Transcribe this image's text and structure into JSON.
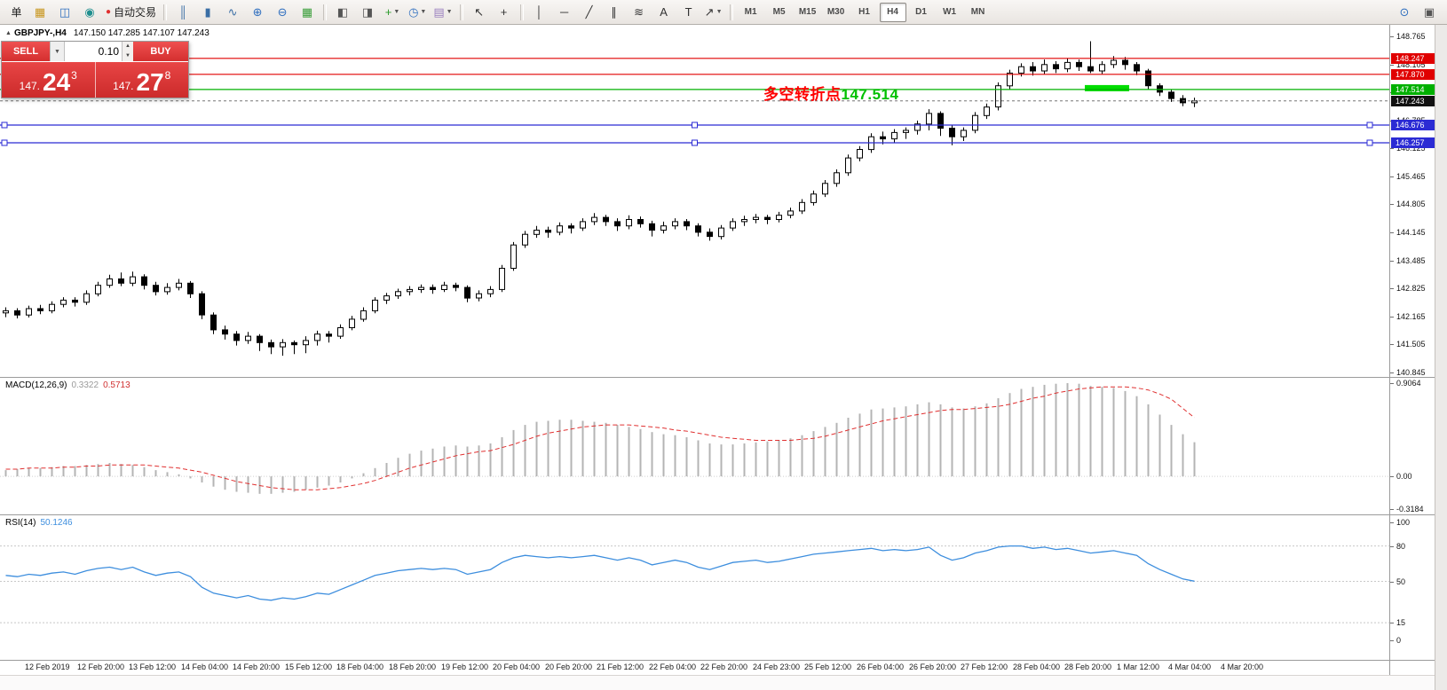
{
  "toolbar": {
    "items": [
      {
        "type": "button",
        "name": "new-order-button",
        "label": "单"
      },
      {
        "type": "icon",
        "name": "new-chart-button",
        "icon": "new-chart-icon",
        "glyph": "▦",
        "color": "#c8961e"
      },
      {
        "type": "icon",
        "name": "profiles-button",
        "icon": "profiles-icon",
        "glyph": "◫",
        "color": "#2f6fbf"
      },
      {
        "type": "icon",
        "name": "market-watch-button",
        "icon": "market-watch-icon",
        "glyph": "◉",
        "color": "#1f8f8f"
      },
      {
        "type": "autotrade",
        "name": "autotrade-button",
        "label": "自动交易",
        "dot_color": "#e03030"
      },
      {
        "type": "sep"
      },
      {
        "type": "icon",
        "name": "chart-bars-button",
        "icon": "bar-chart-icon",
        "glyph": "║",
        "color": "#3a6ea5"
      },
      {
        "type": "icon",
        "name": "chart-candles-button",
        "icon": "candlestick-icon",
        "glyph": "▮",
        "color": "#3a6ea5"
      },
      {
        "type": "icon",
        "name": "chart-line-button",
        "icon": "line-chart-icon",
        "glyph": "∿",
        "color": "#3a6ea5"
      },
      {
        "type": "icon",
        "name": "zoom-in-button",
        "icon": "zoom-in-icon",
        "glyph": "⊕",
        "color": "#2f6fbf"
      },
      {
        "type": "icon",
        "name": "zoom-out-button",
        "icon": "zoom-out-icon",
        "glyph": "⊖",
        "color": "#2f6fbf"
      },
      {
        "type": "icon",
        "name": "grid-button",
        "icon": "grid-icon",
        "glyph": "▦",
        "color": "#3a9e3a"
      },
      {
        "type": "sep"
      },
      {
        "type": "icon",
        "name": "tile-windows-button",
        "icon": "tile-windows-icon",
        "glyph": "◧",
        "color": "#555555"
      },
      {
        "type": "icon",
        "name": "cascade-windows-button",
        "icon": "cascade-windows-icon",
        "glyph": "◨",
        "color": "#555555"
      },
      {
        "type": "icon",
        "name": "indicators-button",
        "icon": "indicators-icon",
        "glyph": "+",
        "color": "#2a9a2a",
        "dropdown": true
      },
      {
        "type": "icon",
        "name": "periods-button",
        "icon": "clock-icon",
        "glyph": "◷",
        "color": "#2f6fbf",
        "dropdown": true
      },
      {
        "type": "icon",
        "name": "templates-button",
        "icon": "templates-icon",
        "glyph": "▤",
        "color": "#9a7fbf",
        "dropdown": true
      },
      {
        "type": "sep"
      },
      {
        "type": "icon",
        "name": "cursor-button",
        "icon": "cursor-icon",
        "glyph": "↖",
        "color": "#333333"
      },
      {
        "type": "icon",
        "name": "crosshair-button",
        "icon": "crosshair-icon",
        "glyph": "+",
        "color": "#333333"
      },
      {
        "type": "sep"
      },
      {
        "type": "icon",
        "name": "vertical-line-button",
        "icon": "vertical-line-icon",
        "glyph": "│",
        "color": "#333333"
      },
      {
        "type": "icon",
        "name": "horizontal-line-button",
        "icon": "horizontal-line-icon",
        "glyph": "─",
        "color": "#333333"
      },
      {
        "type": "icon",
        "name": "trendline-button",
        "icon": "trendline-icon",
        "glyph": "╱",
        "color": "#333333"
      },
      {
        "type": "icon",
        "name": "equidistant-channel-button",
        "icon": "channel-icon",
        "glyph": "∥",
        "color": "#333333"
      },
      {
        "type": "icon",
        "name": "fibonacci-button",
        "icon": "fibonacci-icon",
        "glyph": "≋",
        "color": "#333333"
      },
      {
        "type": "icon",
        "name": "text-button",
        "icon": "text-icon",
        "glyph": "A",
        "color": "#333333"
      },
      {
        "type": "icon",
        "name": "text-label-button",
        "icon": "text-label-icon",
        "glyph": "T",
        "color": "#333333"
      },
      {
        "type": "icon",
        "name": "arrows-button",
        "icon": "arrows-icon",
        "glyph": "↗",
        "color": "#333333",
        "dropdown": true
      },
      {
        "type": "sep"
      },
      {
        "type": "timeframes"
      },
      {
        "type": "spacer"
      },
      {
        "type": "icon",
        "name": "search-button",
        "icon": "search-icon",
        "glyph": "⊙",
        "color": "#2f6fbf"
      },
      {
        "type": "icon",
        "name": "new-window-button",
        "icon": "window-icon",
        "glyph": "▣",
        "color": "#555555"
      }
    ],
    "timeframes": [
      "M1",
      "M5",
      "M15",
      "M30",
      "H1",
      "H4",
      "D1",
      "W1",
      "MN"
    ],
    "active_timeframe": "H4"
  },
  "chart": {
    "symbol": "GBPJPY-,H4",
    "ohlc": "147.150 147.285 147.107 147.243",
    "price_max": 148.765,
    "price_min": 140.845,
    "axis_labels": [
      "148.765",
      "148.105",
      "147.445",
      "146.785",
      "146.125",
      "145.465",
      "144.805",
      "144.145",
      "143.485",
      "142.825",
      "142.165",
      "141.505",
      "140.845"
    ],
    "levels": [
      {
        "name": "resistance-line-1",
        "price": 148.247,
        "label": "148.247",
        "color": "#e00000",
        "selected": false
      },
      {
        "name": "resistance-line-2",
        "price": 147.87,
        "label": "147.870",
        "color": "#e00000",
        "selected": false
      },
      {
        "name": "pivot-line",
        "price": 147.514,
        "label": "147.514",
        "color": "#00b000",
        "selected": false
      },
      {
        "name": "support-line-1",
        "price": 146.676,
        "label": "146.676",
        "color": "#2b2bd4",
        "selected": true
      },
      {
        "name": "support-line-2",
        "price": 146.257,
        "label": "146.257",
        "color": "#2b2bd4",
        "selected": true
      }
    ],
    "current_price": {
      "price": 147.243,
      "label": "147.243",
      "badge_color": "#111111"
    },
    "annotation": {
      "prefix": "多空转折点",
      "value": "147.514",
      "prefix_color": "#ff0000",
      "value_color": "#00c000"
    },
    "highlight": {
      "x": 1222,
      "width": 50,
      "price": 147.545,
      "thickness": 7,
      "color": "#00dd00"
    }
  },
  "one_click": {
    "sell_label": "SELL",
    "buy_label": "BUY",
    "lot": "0.10",
    "sell_price_main": "147.",
    "sell_price_big": "24",
    "sell_price_sup": "3",
    "buy_price_main": "147.",
    "buy_price_big": "27",
    "buy_price_sup": "8"
  },
  "macd": {
    "title": "MACD(12,26,9)",
    "value_main": "0.3322",
    "value_signal": "0.5713",
    "scale": [
      "0.9064",
      "0.00",
      "-0.3184"
    ],
    "histogram_color": "#b4b4b4",
    "signal_color": "#e03030"
  },
  "rsi": {
    "title": "RSI(14)",
    "value": "50.1246",
    "scale": [
      "100",
      "80",
      "50",
      "15",
      "0"
    ],
    "levels": [
      80,
      50,
      15
    ],
    "line_color": "#3d8ede"
  },
  "time_axis": [
    "12 Feb 2019",
    "12 Feb 20:00",
    "13 Feb 12:00",
    "14 Feb 04:00",
    "14 Feb 20:00",
    "15 Feb 12:00",
    "18 Feb 04:00",
    "18 Feb 20:00",
    "19 Feb 12:00",
    "20 Feb 04:00",
    "20 Feb 20:00",
    "21 Feb 12:00",
    "22 Feb 04:00",
    "22 Feb 20:00",
    "24 Feb 23:00",
    "25 Feb 12:00",
    "26 Feb 04:00",
    "26 Feb 20:00",
    "27 Feb 12:00",
    "28 Feb 04:00",
    "28 Feb 20:00",
    "1 Mar 12:00",
    "4 Mar 04:00",
    "4 Mar 20:00"
  ],
  "chart_data": {
    "type": "candlestick",
    "symbol": "GBPJPY",
    "timeframe": "H4",
    "ylim": [
      140.845,
      148.765
    ],
    "candles": [
      [
        142.25,
        142.38,
        142.15,
        142.3
      ],
      [
        142.3,
        142.36,
        142.12,
        142.2
      ],
      [
        142.2,
        142.42,
        142.14,
        142.35
      ],
      [
        142.35,
        142.44,
        142.22,
        142.3
      ],
      [
        142.3,
        142.52,
        142.24,
        142.45
      ],
      [
        142.45,
        142.62,
        142.38,
        142.55
      ],
      [
        142.55,
        142.62,
        142.4,
        142.5
      ],
      [
        142.5,
        142.78,
        142.44,
        142.7
      ],
      [
        142.7,
        142.98,
        142.64,
        142.9
      ],
      [
        142.9,
        143.15,
        142.84,
        143.05
      ],
      [
        143.05,
        143.2,
        142.88,
        142.95
      ],
      [
        142.95,
        143.22,
        142.88,
        143.1
      ],
      [
        143.1,
        143.16,
        142.8,
        142.9
      ],
      [
        142.9,
        142.98,
        142.66,
        142.75
      ],
      [
        142.75,
        142.95,
        142.68,
        142.85
      ],
      [
        142.85,
        143.05,
        142.78,
        142.95
      ],
      [
        142.95,
        143.0,
        142.6,
        142.7
      ],
      [
        142.7,
        142.76,
        142.1,
        142.2
      ],
      [
        142.2,
        142.26,
        141.75,
        141.85
      ],
      [
        141.85,
        141.95,
        141.62,
        141.75
      ],
      [
        141.75,
        141.82,
        141.48,
        141.6
      ],
      [
        141.6,
        141.8,
        141.52,
        141.7
      ],
      [
        141.7,
        141.75,
        141.35,
        141.55
      ],
      [
        141.55,
        141.62,
        141.28,
        141.45
      ],
      [
        141.45,
        141.63,
        141.24,
        141.55
      ],
      [
        141.55,
        141.6,
        141.28,
        141.5
      ],
      [
        141.5,
        141.7,
        141.3,
        141.6
      ],
      [
        141.6,
        141.83,
        141.48,
        141.75
      ],
      [
        141.75,
        141.82,
        141.55,
        141.7
      ],
      [
        141.7,
        141.98,
        141.64,
        141.9
      ],
      [
        141.9,
        142.18,
        141.84,
        142.1
      ],
      [
        142.1,
        142.38,
        142.04,
        142.3
      ],
      [
        142.3,
        142.62,
        142.24,
        142.55
      ],
      [
        142.55,
        142.72,
        142.46,
        142.65
      ],
      [
        142.65,
        142.82,
        142.58,
        142.75
      ],
      [
        142.75,
        142.88,
        142.66,
        142.8
      ],
      [
        142.8,
        142.92,
        142.72,
        142.85
      ],
      [
        142.85,
        142.92,
        142.7,
        142.8
      ],
      [
        142.8,
        142.98,
        142.74,
        142.9
      ],
      [
        142.9,
        142.96,
        142.76,
        142.85
      ],
      [
        142.85,
        142.9,
        142.5,
        142.6
      ],
      [
        142.6,
        142.78,
        142.52,
        142.7
      ],
      [
        142.7,
        142.88,
        142.62,
        142.8
      ],
      [
        142.8,
        143.38,
        142.74,
        143.3
      ],
      [
        143.3,
        143.92,
        143.24,
        143.85
      ],
      [
        143.85,
        144.18,
        143.78,
        144.1
      ],
      [
        144.1,
        144.3,
        144.02,
        144.2
      ],
      [
        144.2,
        144.28,
        144.02,
        144.15
      ],
      [
        144.15,
        144.38,
        144.08,
        144.3
      ],
      [
        144.3,
        144.36,
        144.12,
        144.25
      ],
      [
        144.25,
        144.48,
        144.18,
        144.4
      ],
      [
        144.4,
        144.6,
        144.32,
        144.5
      ],
      [
        144.5,
        144.56,
        144.3,
        144.4
      ],
      [
        144.4,
        144.48,
        144.18,
        144.3
      ],
      [
        144.3,
        144.55,
        144.22,
        144.45
      ],
      [
        144.45,
        144.52,
        144.26,
        144.35
      ],
      [
        144.35,
        144.42,
        144.05,
        144.2
      ],
      [
        144.2,
        144.4,
        144.12,
        144.3
      ],
      [
        144.3,
        144.48,
        144.22,
        144.4
      ],
      [
        144.4,
        144.46,
        144.2,
        144.3
      ],
      [
        144.3,
        144.36,
        144.05,
        144.15
      ],
      [
        144.15,
        144.24,
        143.95,
        144.05
      ],
      [
        144.05,
        144.32,
        143.98,
        144.25
      ],
      [
        144.25,
        144.48,
        144.18,
        144.4
      ],
      [
        144.4,
        144.54,
        144.3,
        144.45
      ],
      [
        144.45,
        144.58,
        144.36,
        144.5
      ],
      [
        144.5,
        144.56,
        144.34,
        144.45
      ],
      [
        144.45,
        144.63,
        144.38,
        144.55
      ],
      [
        144.55,
        144.73,
        144.48,
        144.65
      ],
      [
        144.65,
        144.93,
        144.58,
        144.85
      ],
      [
        144.85,
        145.13,
        144.78,
        145.05
      ],
      [
        145.05,
        145.38,
        144.98,
        145.3
      ],
      [
        145.3,
        145.63,
        145.22,
        145.55
      ],
      [
        145.55,
        145.98,
        145.48,
        145.9
      ],
      [
        145.9,
        146.18,
        145.82,
        146.1
      ],
      [
        146.1,
        146.48,
        146.02,
        146.4
      ],
      [
        146.4,
        146.52,
        146.22,
        146.35
      ],
      [
        146.35,
        146.58,
        146.26,
        146.5
      ],
      [
        146.5,
        146.62,
        146.35,
        146.55
      ],
      [
        146.55,
        146.78,
        146.45,
        146.7
      ],
      [
        146.7,
        147.05,
        146.55,
        146.95
      ],
      [
        146.95,
        147.0,
        146.42,
        146.6
      ],
      [
        146.6,
        146.68,
        146.2,
        146.4
      ],
      [
        146.4,
        146.62,
        146.3,
        146.55
      ],
      [
        146.55,
        146.98,
        146.48,
        146.9
      ],
      [
        146.9,
        147.18,
        146.82,
        147.1
      ],
      [
        147.1,
        147.68,
        147.02,
        147.6
      ],
      [
        147.6,
        147.98,
        147.52,
        147.9
      ],
      [
        147.9,
        148.13,
        147.82,
        148.05
      ],
      [
        148.05,
        148.16,
        147.84,
        147.95
      ],
      [
        147.95,
        148.22,
        147.88,
        148.1
      ],
      [
        148.1,
        148.18,
        147.9,
        148.0
      ],
      [
        148.0,
        148.25,
        147.92,
        148.15
      ],
      [
        148.15,
        148.22,
        147.95,
        148.05
      ],
      [
        148.05,
        148.65,
        147.9,
        147.95
      ],
      [
        147.95,
        148.18,
        147.88,
        148.1
      ],
      [
        148.1,
        148.3,
        148.02,
        148.2
      ],
      [
        148.2,
        148.28,
        147.98,
        148.1
      ],
      [
        148.1,
        148.16,
        147.85,
        147.95
      ],
      [
        147.95,
        148.0,
        147.52,
        147.6
      ],
      [
        147.6,
        147.66,
        147.36,
        147.45
      ],
      [
        147.45,
        147.52,
        147.22,
        147.3
      ],
      [
        147.3,
        147.38,
        147.12,
        147.2
      ],
      [
        147.2,
        147.32,
        147.1,
        147.243
      ]
    ],
    "macd_hist": [
      0.06,
      0.07,
      0.08,
      0.08,
      0.09,
      0.1,
      0.1,
      0.11,
      0.12,
      0.13,
      0.12,
      0.11,
      0.09,
      0.06,
      0.04,
      0.02,
      -0.02,
      -0.06,
      -0.1,
      -0.13,
      -0.15,
      -0.16,
      -0.17,
      -0.17,
      -0.16,
      -0.15,
      -0.13,
      -0.11,
      -0.09,
      -0.06,
      -0.02,
      0.03,
      0.08,
      0.13,
      0.18,
      0.22,
      0.25,
      0.27,
      0.29,
      0.3,
      0.29,
      0.3,
      0.32,
      0.38,
      0.45,
      0.5,
      0.53,
      0.54,
      0.55,
      0.55,
      0.54,
      0.53,
      0.52,
      0.5,
      0.48,
      0.46,
      0.43,
      0.41,
      0.4,
      0.38,
      0.35,
      0.32,
      0.31,
      0.31,
      0.32,
      0.33,
      0.34,
      0.35,
      0.37,
      0.4,
      0.44,
      0.48,
      0.52,
      0.57,
      0.61,
      0.65,
      0.66,
      0.67,
      0.68,
      0.7,
      0.72,
      0.7,
      0.67,
      0.66,
      0.68,
      0.71,
      0.76,
      0.81,
      0.85,
      0.87,
      0.89,
      0.9,
      0.906,
      0.9,
      0.88,
      0.87,
      0.86,
      0.83,
      0.78,
      0.7,
      0.6,
      0.5,
      0.41,
      0.332
    ],
    "macd_signal": [
      0.07,
      0.07,
      0.08,
      0.08,
      0.08,
      0.09,
      0.09,
      0.1,
      0.1,
      0.11,
      0.11,
      0.11,
      0.11,
      0.1,
      0.09,
      0.08,
      0.06,
      0.04,
      0.01,
      -0.02,
      -0.05,
      -0.07,
      -0.09,
      -0.11,
      -0.12,
      -0.13,
      -0.13,
      -0.13,
      -0.12,
      -0.11,
      -0.09,
      -0.07,
      -0.04,
      0.0,
      0.04,
      0.08,
      0.11,
      0.14,
      0.17,
      0.2,
      0.22,
      0.24,
      0.25,
      0.28,
      0.31,
      0.35,
      0.39,
      0.42,
      0.44,
      0.46,
      0.48,
      0.49,
      0.5,
      0.5,
      0.5,
      0.49,
      0.48,
      0.47,
      0.45,
      0.44,
      0.42,
      0.4,
      0.38,
      0.37,
      0.36,
      0.35,
      0.35,
      0.35,
      0.35,
      0.36,
      0.37,
      0.39,
      0.42,
      0.45,
      0.48,
      0.51,
      0.54,
      0.56,
      0.58,
      0.6,
      0.62,
      0.64,
      0.65,
      0.65,
      0.66,
      0.67,
      0.68,
      0.7,
      0.73,
      0.76,
      0.78,
      0.81,
      0.83,
      0.85,
      0.86,
      0.87,
      0.87,
      0.87,
      0.86,
      0.84,
      0.8,
      0.75,
      0.66,
      0.571
    ],
    "rsi": [
      55,
      54,
      56,
      55,
      57,
      58,
      56,
      59,
      61,
      62,
      60,
      62,
      58,
      55,
      57,
      58,
      54,
      45,
      40,
      38,
      36,
      38,
      35,
      34,
      36,
      35,
      37,
      40,
      39,
      43,
      47,
      51,
      55,
      57,
      59,
      60,
      61,
      60,
      61,
      60,
      56,
      58,
      60,
      66,
      70,
      72,
      71,
      70,
      71,
      70,
      71,
      72,
      70,
      68,
      70,
      68,
      64,
      66,
      68,
      66,
      62,
      60,
      63,
      66,
      67,
      68,
      66,
      67,
      69,
      71,
      73,
      74,
      75,
      76,
      77,
      78,
      76,
      77,
      76,
      77,
      79,
      72,
      68,
      70,
      74,
      76,
      79,
      80,
      80,
      78,
      79,
      77,
      78,
      76,
      74,
      75,
      76,
      74,
      72,
      65,
      60,
      56,
      52,
      50.12
    ]
  }
}
